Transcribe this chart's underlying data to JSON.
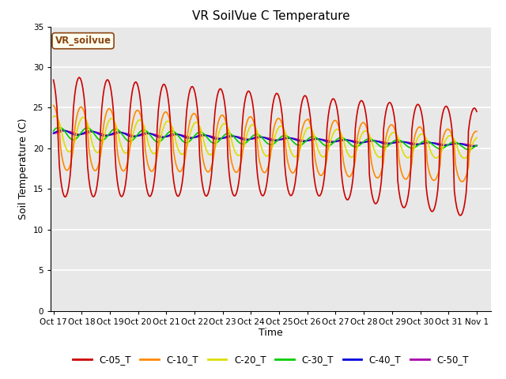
{
  "title": "VR SoilVue C Temperature",
  "ylabel": "Soil Temperature (C)",
  "xlabel": "Time",
  "annotation": "VR_soilvue",
  "ylim": [
    0,
    35
  ],
  "xlim": [
    -0.1,
    15.5
  ],
  "yticks": [
    0,
    5,
    10,
    15,
    20,
    25,
    30,
    35
  ],
  "xtick_labels": [
    "Oct 17",
    "Oct 18",
    "Oct 19",
    "Oct 20",
    "Oct 21",
    "Oct 22",
    "Oct 23",
    "Oct 24",
    "Oct 25",
    "Oct 26",
    "Oct 27",
    "Oct 28",
    "Oct 29",
    "Oct 30",
    "Oct 31",
    "Nov 1"
  ],
  "series_colors": {
    "C-05_T": "#cc0000",
    "C-10_T": "#ff8800",
    "C-20_T": "#dddd00",
    "C-30_T": "#00cc00",
    "C-40_T": "#0000dd",
    "C-50_T": "#aa00aa"
  },
  "bg_color": "#e8e8e8",
  "grid_color": "white",
  "line_width": 1.2,
  "figsize": [
    6.4,
    4.8
  ],
  "dpi": 100
}
